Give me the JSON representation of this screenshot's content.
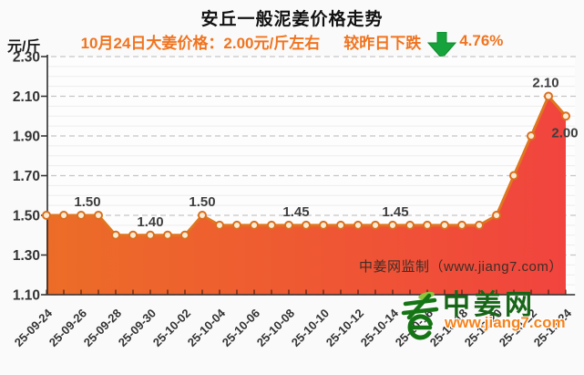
{
  "header": {
    "title": "安丘一般泥姜价格走势",
    "unit_label": "元/斤",
    "subtitle": {
      "price_text": "10月24日大姜价格：2.00元/斤左右",
      "change_text": "较昨日下跌",
      "pct_text": "4.76%",
      "arrow_icon": "down-arrow-icon",
      "arrow_color": "#17a33b",
      "text_color": "#f0741f"
    }
  },
  "watermark_text": "中姜网监制（www.jiang7.com）",
  "logo": {
    "site_name": "中姜网",
    "site_url": "www.jiang7.com",
    "icon": "ginger-sprout-icon",
    "name_color": "#176617",
    "url_color": "#f5831d"
  },
  "chart_data": {
    "type": "area",
    "title": "安丘一般泥姜价格走势",
    "ylabel": "元/斤",
    "ylim": [
      1.1,
      2.3
    ],
    "y_ticks": [
      "2.30",
      "2.10",
      "1.90",
      "1.70",
      "1.50",
      "1.30",
      "1.10"
    ],
    "grid": "dashed-major-with-minor",
    "x": [
      "25-09-24",
      "25-09-25",
      "25-09-26",
      "25-09-27",
      "25-09-28",
      "25-09-29",
      "25-09-30",
      "25-10-01",
      "25-10-02",
      "25-10-03",
      "25-10-04",
      "25-10-05",
      "25-10-06",
      "25-10-07",
      "25-10-08",
      "25-10-09",
      "25-10-10",
      "25-10-11",
      "25-10-12",
      "25-10-13",
      "25-10-14",
      "25-10-15",
      "25-10-16",
      "25-10-17",
      "25-10-18",
      "25-10-19",
      "25-10-20",
      "25-10-21",
      "25-10-22",
      "25-10-23",
      "25-10-24"
    ],
    "values": [
      1.5,
      1.5,
      1.5,
      1.5,
      1.4,
      1.4,
      1.4,
      1.4,
      1.4,
      1.5,
      1.45,
      1.45,
      1.45,
      1.45,
      1.45,
      1.45,
      1.45,
      1.45,
      1.45,
      1.45,
      1.45,
      1.45,
      1.45,
      1.45,
      1.45,
      1.45,
      1.5,
      1.7,
      1.9,
      2.1,
      2.0
    ],
    "x_tick_labels": [
      "25-09-24",
      "25-09-26",
      "25-09-28",
      "25-09-30",
      "25-10-02",
      "25-10-04",
      "25-10-06",
      "25-10-08",
      "25-10-10",
      "25-10-12",
      "25-10-14",
      "25-10-16",
      "25-10-18",
      "25-10-20",
      "25-10-22",
      "25-10-24"
    ],
    "point_labels": [
      {
        "index": 2,
        "text": "1.50",
        "dx": 7
      },
      {
        "index": 6,
        "text": "1.40",
        "dx": 0
      },
      {
        "index": 9,
        "text": "1.50",
        "dx": 0
      },
      {
        "index": 14,
        "text": "1.45",
        "dx": 8
      },
      {
        "index": 20,
        "text": "1.45",
        "dx": 3
      },
      {
        "index": 29,
        "text": "2.10",
        "dx": -3
      },
      {
        "index": 30,
        "text": "2.00",
        "dx": -1,
        "position": "below"
      }
    ],
    "line_color": "#e0751f",
    "fill_gradient": [
      "#ec6d27",
      "#f1443e"
    ],
    "marker": {
      "fill": "#fcebd4",
      "stroke": "#d96f1f"
    },
    "label_color": "#3e3e3e",
    "axis_color": "#2e2e2e",
    "tick_label_color": "#333333"
  }
}
